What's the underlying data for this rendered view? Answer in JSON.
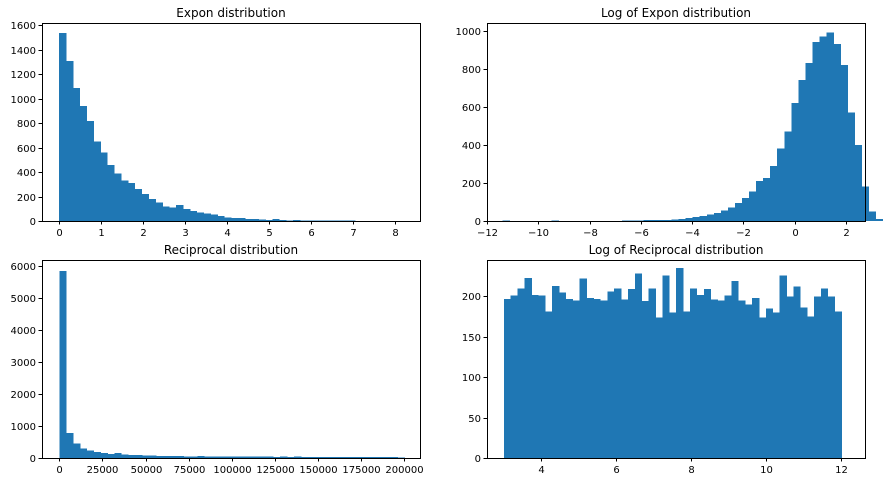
{
  "chart_data": [
    {
      "type": "bar",
      "title": "Expon distribution",
      "xlabel": "",
      "ylabel": "",
      "xlim": [
        -0.41,
        8.6
      ],
      "ylim": [
        0,
        1620
      ],
      "xticks": [
        0,
        1,
        2,
        3,
        4,
        5,
        6,
        7,
        8
      ],
      "yticks": [
        0,
        200,
        400,
        600,
        800,
        1000,
        1200,
        1400,
        1600
      ],
      "grid": false,
      "color": "#1f77b4",
      "bin_start": 0.0,
      "bin_width": 0.164,
      "values": [
        1540,
        1310,
        1090,
        940,
        820,
        650,
        560,
        460,
        390,
        330,
        310,
        260,
        220,
        180,
        150,
        120,
        110,
        130,
        100,
        80,
        70,
        60,
        55,
        40,
        30,
        25,
        25,
        18,
        18,
        12,
        10,
        15,
        8,
        6,
        8,
        4,
        6,
        5,
        5,
        3,
        3,
        4,
        3,
        2,
        2,
        2,
        1,
        1,
        1,
        1
      ]
    },
    {
      "type": "bar",
      "title": "Log of Expon distribution",
      "xlabel": "",
      "ylabel": "",
      "xlim": [
        -12.0,
        2.75
      ],
      "ylim": [
        0,
        1040
      ],
      "xticks": [
        -12,
        -10,
        -8,
        -6,
        -4,
        -2,
        0,
        2
      ],
      "yticks": [
        0,
        200,
        400,
        600,
        800,
        1000
      ],
      "grid": false,
      "color": "#1f77b4",
      "bin_start": -11.4,
      "bin_width": 0.275,
      "values": [
        2,
        0,
        0,
        0,
        0,
        1,
        0,
        2,
        0,
        0,
        0,
        0,
        1,
        0,
        1,
        0,
        0,
        3,
        3,
        3,
        4,
        4,
        5,
        6,
        8,
        10,
        15,
        20,
        26,
        34,
        42,
        56,
        70,
        95,
        120,
        155,
        210,
        225,
        290,
        380,
        470,
        620,
        740,
        830,
        940,
        970,
        990,
        930,
        820,
        570,
        400,
        180,
        50,
        10
      ]
    },
    {
      "type": "bar",
      "title": "Reciprocal distribution",
      "xlabel": "",
      "ylabel": "",
      "xlim": [
        -10000,
        209000
      ],
      "ylim": [
        0,
        6200
      ],
      "xticks": [
        0,
        25000,
        50000,
        75000,
        100000,
        125000,
        150000,
        175000,
        200000
      ],
      "yticks": [
        0,
        1000,
        2000,
        3000,
        4000,
        5000,
        6000
      ],
      "grid": false,
      "color": "#1f77b4",
      "bin_start": 0,
      "bin_width": 4000,
      "values": [
        5850,
        780,
        450,
        300,
        230,
        190,
        150,
        120,
        150,
        110,
        100,
        90,
        80,
        80,
        70,
        70,
        60,
        60,
        50,
        50,
        60,
        50,
        40,
        40,
        50,
        45,
        50,
        50,
        40,
        45,
        50,
        35,
        40,
        35,
        40,
        35,
        30,
        35,
        30,
        30,
        30,
        30,
        30,
        25,
        25,
        25,
        25,
        25,
        25,
        20
      ]
    },
    {
      "type": "bar",
      "title": "Log of Reciprocal distribution",
      "xlabel": "",
      "ylabel": "",
      "xlim": [
        2.55,
        12.65
      ],
      "ylim": [
        0,
        245
      ],
      "xticks": [
        4,
        6,
        8,
        10,
        12
      ],
      "yticks": [
        0,
        50,
        100,
        150,
        200
      ],
      "grid": false,
      "color": "#1f77b4",
      "bin_start": 3.0,
      "bin_width": 0.1842,
      "values": [
        197,
        201,
        210,
        223,
        202,
        201,
        181,
        213,
        205,
        197,
        195,
        222,
        198,
        197,
        195,
        206,
        210,
        196,
        209,
        228,
        194,
        210,
        174,
        226,
        180,
        235,
        181,
        210,
        202,
        209,
        196,
        195,
        201,
        219,
        195,
        190,
        198,
        174,
        185,
        180,
        226,
        200,
        212,
        186,
        175,
        200,
        210,
        200,
        181
      ]
    }
  ]
}
